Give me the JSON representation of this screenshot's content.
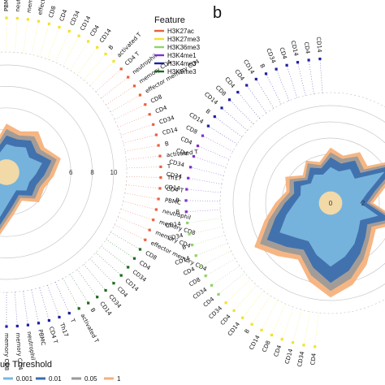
{
  "chart_data": {
    "type": "radial-area",
    "feature_legend": {
      "title": "Feature",
      "entries": [
        {
          "label": "H3K27ac",
          "color": "#e8603c"
        },
        {
          "label": "H3K27me3",
          "color": "#f3e22a"
        },
        {
          "label": "H3K36me3",
          "color": "#8fd36a"
        },
        {
          "label": "H3K4me1",
          "color": "#7f2fd0"
        },
        {
          "label": "H3K4me3",
          "color": "#1f1fa0"
        },
        {
          "label": "H3K9me3",
          "color": "#1a6b1a"
        }
      ]
    },
    "threshold_legend": {
      "title": "ue Threshold",
      "entries": [
        {
          "label": "0.001",
          "color": "#79b8e0"
        },
        {
          "label": "0.01",
          "color": "#3a6fb0"
        },
        {
          "label": "0.05",
          "color": "#9a9a9a"
        },
        {
          "label": "1",
          "color": "#f5b07a"
        }
      ]
    },
    "panels": [
      {
        "label": "",
        "ticks": [
          "6",
          "8",
          "10"
        ],
        "rmax": 10,
        "rings": [
          2,
          4,
          6,
          8,
          10
        ],
        "groups": [
          {
            "feature": "H3K27me3",
            "color": "#f3e22a",
            "labels": [
              "PBMC",
              "neutrophil",
              "memory CD4",
              "effector memory CD4",
              "CD8",
              "CD4",
              "CD34",
              "CD14",
              "CD4",
              "CD14",
              "B",
              "activated T"
            ]
          },
          {
            "feature": "H3K27ac",
            "color": "#e8603c",
            "labels": [
              "CD4 T",
              "neutrophil",
              "memory CD4",
              "effector memory CD4",
              "CD8",
              "CD4",
              "CD34",
              "CD14",
              "B",
              "activated T",
              "T",
              "Th17",
              "CD4 T",
              "PBMC",
              "neutrophil",
              "memory CD8",
              "memory CD4",
              "effector memory CD4"
            ]
          },
          {
            "feature": "H3K9me3",
            "color": "#1a6b1a",
            "labels": [
              "CD8",
              "CD4",
              "CD34",
              "CD14",
              "CD4",
              "CD34",
              "CD14",
              "B",
              "activated T"
            ]
          },
          {
            "feature": "H3K4me3",
            "color": "#1f1fa0",
            "labels": [
              "T",
              "Th17",
              "CD4 T",
              "PBMC",
              "neutrophil",
              "memory CD4",
              "memory CD8"
            ]
          }
        ],
        "series": [
          {
            "threshold": "1",
            "color": "#f5b07a",
            "values": [
              4.5,
              4.0,
              4.8,
              4.2,
              5.2,
              4.4,
              3.8,
              4.1,
              3.0,
              4.0,
              6.6,
              5.0,
              4.2,
              3.8,
              3.2,
              2.8,
              3.4,
              2.8,
              3.0
            ]
          },
          {
            "threshold": "0.05",
            "color": "#9a9a9a",
            "values": [
              4.0,
              3.6,
              4.2,
              3.8,
              4.8,
              4.0,
              3.4,
              3.6,
              2.7,
              3.6,
              6.0,
              4.5,
              3.8,
              3.4,
              2.9,
              2.5,
              3.0,
              2.5,
              2.7
            ]
          },
          {
            "threshold": "0.01",
            "color": "#3a6fb0",
            "values": [
              3.4,
              3.2,
              3.7,
              3.3,
              4.3,
              3.5,
              3.0,
              3.2,
              2.4,
              3.2,
              5.4,
              4.0,
              3.3,
              3.0,
              2.6,
              2.2,
              2.6,
              2.2,
              2.4
            ]
          },
          {
            "threshold": "0.001",
            "color": "#79b8e0",
            "values": [
              2.6,
              2.5,
              2.9,
              2.5,
              3.4,
              2.7,
              2.3,
              2.5,
              1.9,
              2.5,
              4.4,
              3.2,
              2.6,
              2.3,
              2.0,
              1.7,
              2.0,
              1.7,
              1.9
            ]
          }
        ]
      },
      {
        "label": "b",
        "ticks": [
          "0",
          "2"
        ],
        "rmax": 6,
        "rings": [
          1,
          2,
          3,
          4,
          5,
          6
        ],
        "groups": [
          {
            "feature": "H3K27me3",
            "color": "#f3e22a",
            "labels": [
              "CD4",
              "CD34",
              "CD14",
              "CD4",
              "CD8",
              "CD14",
              "B",
              "CD14",
              "CD4",
              "CD34"
            ]
          },
          {
            "feature": "H3K36me3",
            "color": "#8fd36a",
            "labels": [
              "CD4",
              "CD34",
              "CD8",
              "CD4",
              "CD14",
              "B",
              "CD34",
              "CD14"
            ]
          },
          {
            "feature": "H3K4me1",
            "color": "#7f2fd0",
            "labels": [
              "B",
              "B",
              "CD14",
              "CD34",
              "CD34",
              "CD4",
              "CD4",
              "CD8"
            ]
          },
          {
            "feature": "H3K4me3",
            "color": "#1f1fa0",
            "labels": [
              "CD14",
              "B",
              "CD14",
              "CD8",
              "CD4",
              "CD4",
              "CD14",
              "B",
              "CD34",
              "CD4",
              "CD14",
              "CD4",
              "CD14"
            ]
          }
        ],
        "series": [
          {
            "threshold": "1",
            "color": "#f5b07a",
            "values": [
              3.4,
              3.0,
              3.6,
              3.2,
              5.6,
              3.4,
              2.6,
              4.6,
              3.2,
              3.6,
              4.4,
              5.2,
              5.8,
              5.0,
              4.0,
              4.6,
              5.4,
              4.2,
              3.4,
              2.8,
              3.2,
              2.4,
              3.0,
              2.6
            ]
          },
          {
            "threshold": "0.05",
            "color": "#9a9a9a",
            "values": [
              3.1,
              2.8,
              3.3,
              2.9,
              5.2,
              3.1,
              2.4,
              4.2,
              2.9,
              3.3,
              4.0,
              4.8,
              5.4,
              4.6,
              3.7,
              4.2,
              5.0,
              3.9,
              3.1,
              2.6,
              2.9,
              2.2,
              2.8,
              2.4
            ]
          },
          {
            "threshold": "0.01",
            "color": "#3a6fb0",
            "values": [
              2.8,
              2.5,
              3.0,
              2.6,
              4.7,
              2.8,
              2.2,
              3.8,
              2.6,
              3.0,
              3.6,
              4.3,
              4.9,
              4.1,
              3.3,
              3.8,
              4.5,
              3.5,
              2.8,
              2.3,
              2.6,
              2.0,
              2.5,
              2.2
            ]
          },
          {
            "threshold": "0.001",
            "color": "#79b8e0",
            "values": [
              2.2,
              2.0,
              2.4,
              2.1,
              3.8,
              2.3,
              1.8,
              3.0,
              2.1,
              2.4,
              2.9,
              3.4,
              3.9,
              3.3,
              2.7,
              3.0,
              3.6,
              2.8,
              2.2,
              1.9,
              2.1,
              1.7,
              2.0,
              1.8
            ]
          }
        ]
      }
    ]
  }
}
